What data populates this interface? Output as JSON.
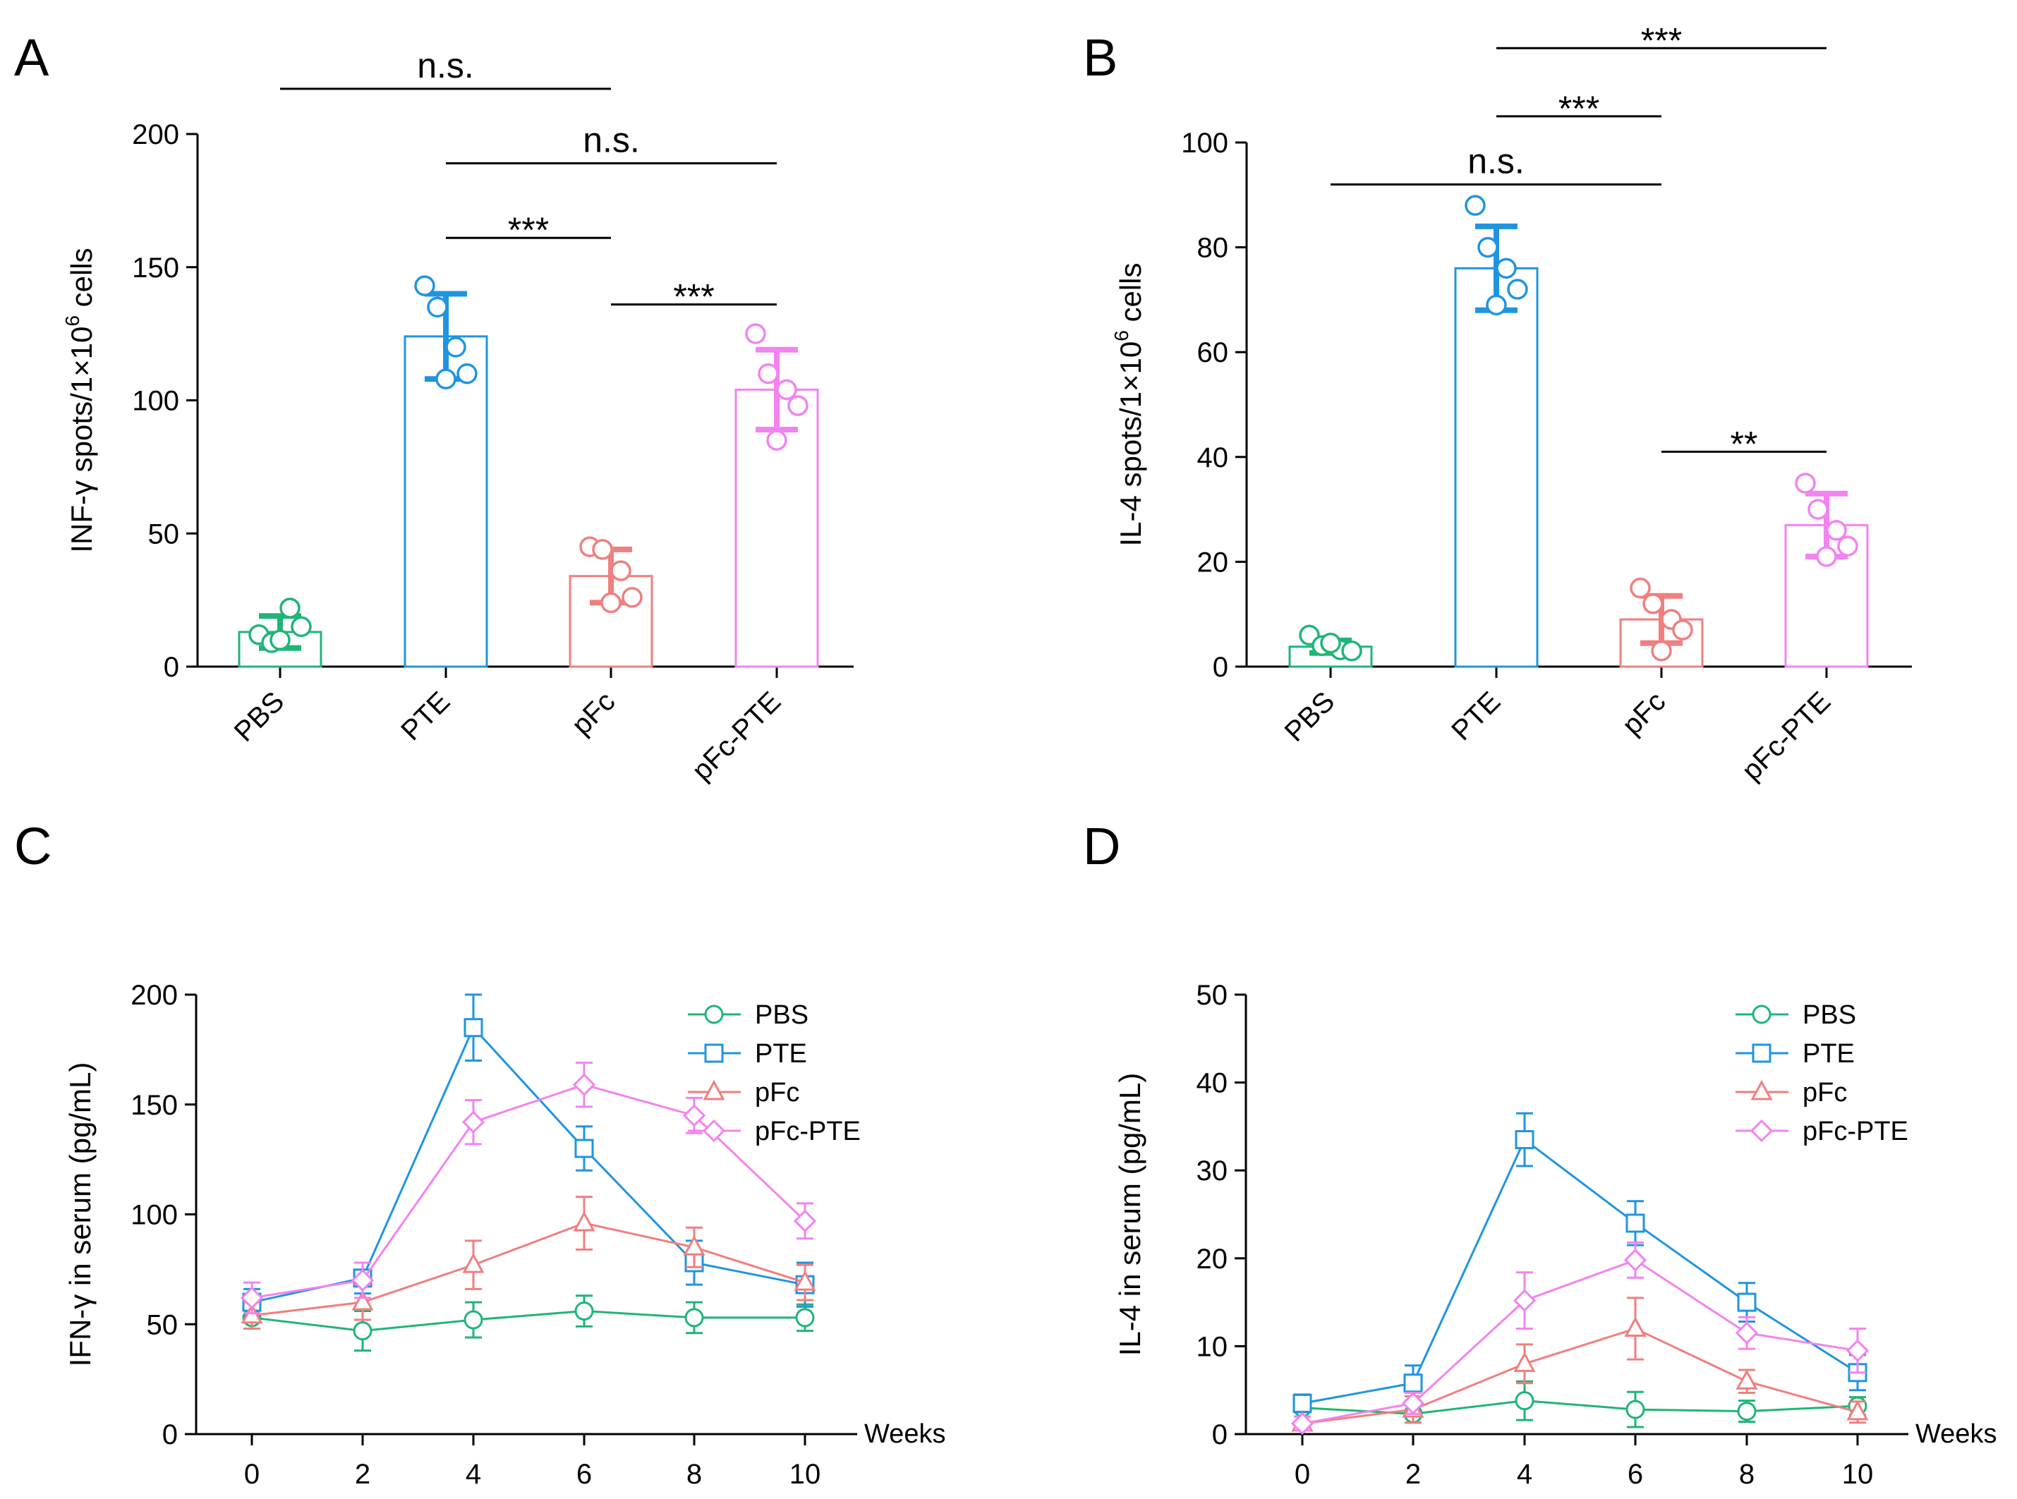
{
  "figure": {
    "colors": {
      "PBS": "#1fb577",
      "PTE": "#1f95e0",
      "pFc": "#f07f7f",
      "pFc-PTE": "#f283f0"
    },
    "panels": [
      {
        "id": "A",
        "letter": "A"
      },
      {
        "id": "B",
        "letter": "B"
      },
      {
        "id": "C",
        "letter": "C"
      },
      {
        "id": "D",
        "letter": "D"
      }
    ]
  },
  "chart_data": [
    {
      "panel": "A",
      "type": "bar",
      "ylabel_main": "INF-γ spots/1×10",
      "ylabel_sup": "6",
      "ylabel_tail": " cells",
      "ylim": [
        0,
        200
      ],
      "yticks": [
        0,
        50,
        100,
        150,
        200
      ],
      "categories": [
        "PBS",
        "PTE",
        "pFc",
        "pFc-PTE"
      ],
      "groups": [
        {
          "name": "PBS",
          "mean": 13,
          "sd": 6,
          "points": [
            12,
            9,
            22,
            15,
            10
          ]
        },
        {
          "name": "PTE",
          "mean": 124,
          "sd": 16,
          "points": [
            143,
            135,
            120,
            110,
            108
          ]
        },
        {
          "name": "pFc",
          "mean": 34,
          "sd": 10,
          "points": [
            45,
            44,
            36,
            26,
            24
          ]
        },
        {
          "name": "pFc-PTE",
          "mean": 104,
          "sd": 15,
          "points": [
            125,
            110,
            104,
            98,
            85
          ]
        }
      ],
      "significance": [
        {
          "from": 0,
          "to": 2,
          "label": "n.s.",
          "y": 217
        },
        {
          "from": 1,
          "to": 3,
          "label": "n.s.",
          "y": 189
        },
        {
          "from": 1,
          "to": 2,
          "label": "***",
          "y": 161
        },
        {
          "from": 2,
          "to": 3,
          "label": "***",
          "y": 136
        }
      ]
    },
    {
      "panel": "B",
      "type": "bar",
      "ylabel_main": "IL-4 spots/1×10",
      "ylabel_sup": "6",
      "ylabel_tail": " cells",
      "ylim": [
        0,
        100
      ],
      "yticks": [
        0,
        20,
        40,
        60,
        80,
        100
      ],
      "categories": [
        "PBS",
        "PTE",
        "pFc",
        "pFc-PTE"
      ],
      "groups": [
        {
          "name": "PBS",
          "mean": 3.8,
          "sd": 1.2,
          "points": [
            6,
            4,
            3.2,
            3.0,
            4.5
          ]
        },
        {
          "name": "PTE",
          "mean": 76,
          "sd": 8,
          "points": [
            88,
            80,
            76,
            72,
            69
          ]
        },
        {
          "name": "pFc",
          "mean": 9,
          "sd": 4.5,
          "points": [
            15,
            12,
            9,
            7,
            3
          ]
        },
        {
          "name": "pFc-PTE",
          "mean": 27,
          "sd": 6,
          "points": [
            35,
            30,
            26,
            23,
            21
          ]
        }
      ],
      "significance": [
        {
          "from": 1,
          "to": 3,
          "label": "***",
          "y": 118
        },
        {
          "from": 1,
          "to": 2,
          "label": "***",
          "y": 105
        },
        {
          "from": 0,
          "to": 2,
          "label": "n.s.",
          "y": 92
        },
        {
          "from": 2,
          "to": 3,
          "label": "**",
          "y": 41
        }
      ]
    },
    {
      "panel": "C",
      "type": "line",
      "ylabel": "IFN-γ in serum (pg/mL)",
      "xlabel": "Weeks",
      "x": [
        0,
        2,
        4,
        6,
        8,
        10
      ],
      "xlim": [
        -1,
        11
      ],
      "ylim": [
        0,
        200
      ],
      "yticks": [
        0,
        50,
        100,
        150,
        200
      ],
      "xticks": [
        0,
        2,
        4,
        6,
        8,
        10
      ],
      "series": [
        {
          "name": "PBS",
          "marker": "circle",
          "values": [
            53,
            47,
            52,
            56,
            53,
            53
          ],
          "err": [
            5,
            9,
            8,
            7,
            7,
            6
          ]
        },
        {
          "name": "PTE",
          "marker": "square",
          "values": [
            60,
            71,
            185,
            130,
            78,
            68
          ],
          "err": [
            6,
            7,
            15,
            10,
            10,
            10
          ]
        },
        {
          "name": "pFc",
          "marker": "triangle",
          "values": [
            54,
            60,
            77,
            96,
            85,
            69
          ],
          "err": [
            6,
            8,
            11,
            12,
            9,
            8
          ]
        },
        {
          "name": "pFc-PTE",
          "marker": "diamond",
          "values": [
            62,
            70,
            142,
            159,
            145,
            97
          ],
          "err": [
            7,
            8,
            10,
            10,
            8,
            8
          ]
        }
      ]
    },
    {
      "panel": "D",
      "type": "line",
      "ylabel": "IL-4 in serum (pg/mL)",
      "xlabel": "Weeks",
      "x": [
        0,
        2,
        4,
        6,
        8,
        10
      ],
      "xlim": [
        -1,
        11
      ],
      "ylim": [
        0,
        50
      ],
      "yticks": [
        0,
        10,
        20,
        30,
        40,
        50
      ],
      "xticks": [
        0,
        2,
        4,
        6,
        8,
        10
      ],
      "series": [
        {
          "name": "PBS",
          "marker": "circle",
          "values": [
            3.0,
            2.3,
            3.8,
            2.8,
            2.6,
            3.2
          ],
          "err": [
            1.0,
            1.0,
            2.2,
            2.0,
            1.2,
            1.0
          ]
        },
        {
          "name": "PTE",
          "marker": "square",
          "values": [
            3.5,
            5.8,
            33.5,
            24,
            15,
            7
          ],
          "err": [
            1.0,
            2.0,
            3.0,
            2.5,
            2.2,
            2.0
          ]
        },
        {
          "name": "pFc",
          "marker": "triangle",
          "values": [
            1.2,
            2.8,
            8.0,
            12,
            6.0,
            2.5
          ],
          "err": [
            0.8,
            1.5,
            2.2,
            3.5,
            1.3,
            1.2
          ]
        },
        {
          "name": "pFc-PTE",
          "marker": "diamond",
          "values": [
            1.2,
            3.5,
            15.2,
            19.8,
            11.5,
            9.5
          ],
          "err": [
            0.8,
            1.2,
            3.2,
            2.0,
            1.8,
            2.5
          ]
        }
      ]
    }
  ]
}
